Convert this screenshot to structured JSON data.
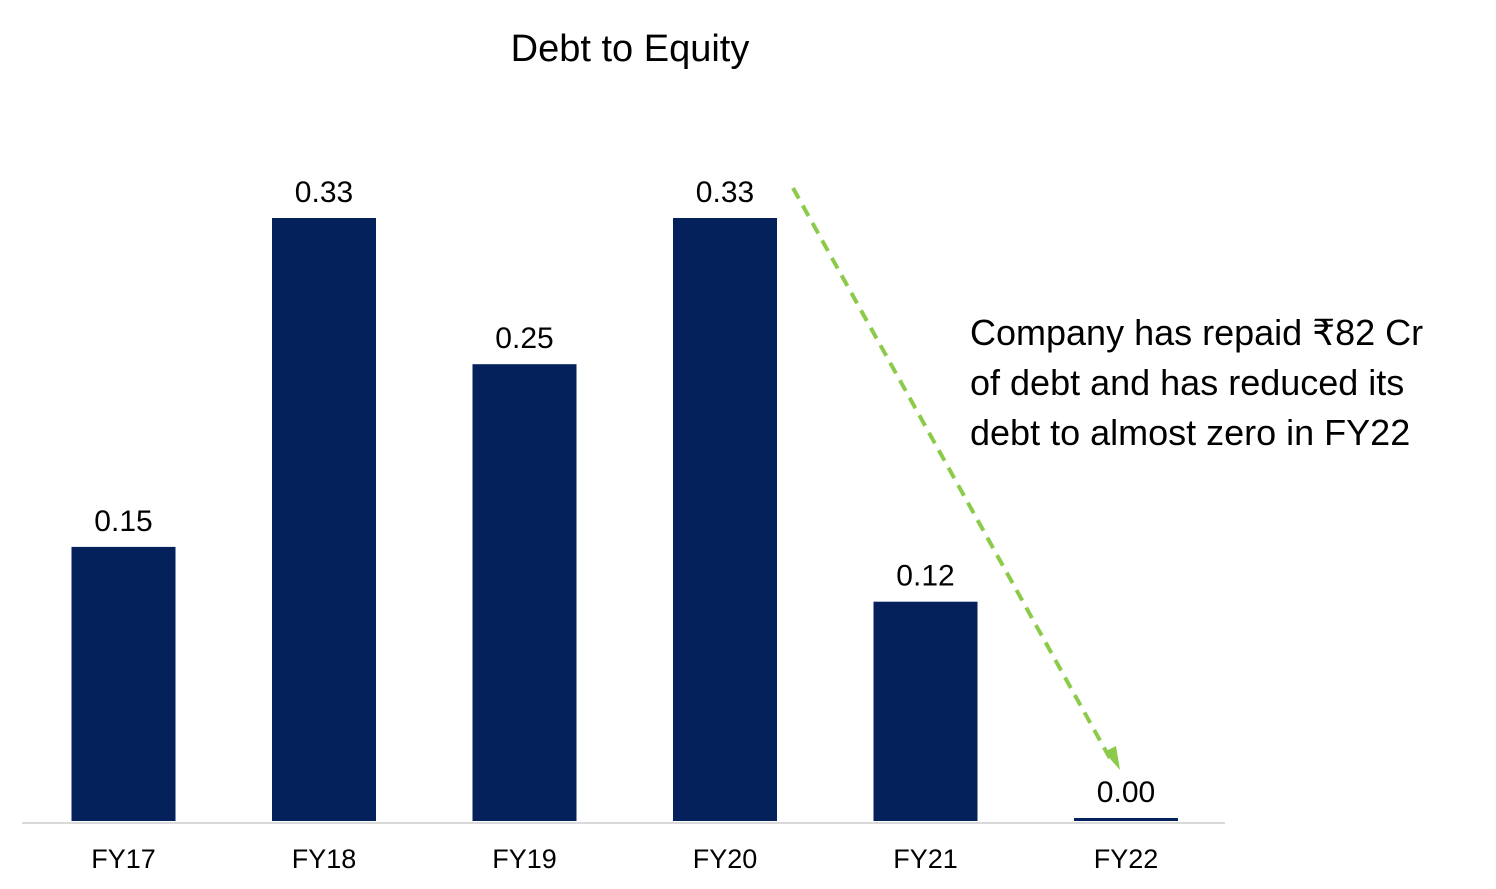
{
  "chart_data": {
    "type": "bar",
    "title": "Debt to Equity",
    "categories": [
      "FY17",
      "FY18",
      "FY19",
      "FY20",
      "FY21",
      "FY22"
    ],
    "values": [
      0.15,
      0.33,
      0.25,
      0.33,
      0.12,
      0.0
    ],
    "value_labels": [
      "0.15",
      "0.33",
      "0.25",
      "0.33",
      "0.12",
      "0.00"
    ],
    "xlabel": "",
    "ylabel": "",
    "ylim": [
      0,
      0.33
    ],
    "grid": false,
    "legend": "none",
    "bar_color": "#04215B",
    "annotation": {
      "lines": [
        "Company has repaid ₹82 Cr",
        "of debt and has reduced its",
        "debt to almost zero in FY22"
      ],
      "arrow_from_category": "FY20",
      "arrow_to_category": "FY22",
      "arrow_color": "#8CCB4A"
    }
  }
}
